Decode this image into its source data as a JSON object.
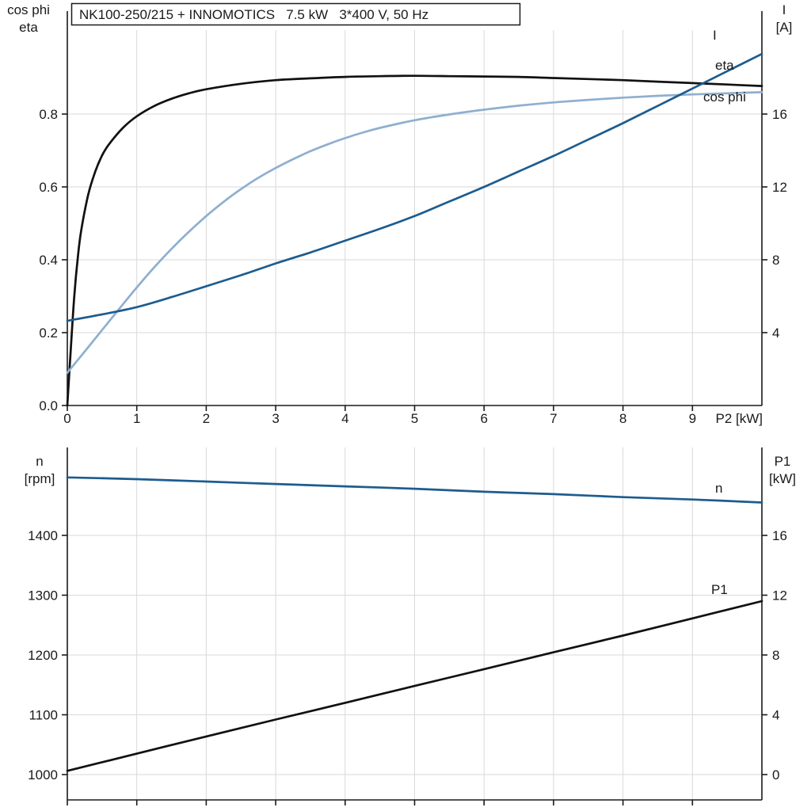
{
  "title": "NK100-250/215 + INNOMOTICS   7.5 kW   3*400 V, 50 Hz",
  "colors": {
    "axis": "#1a1a1a",
    "grid": "#d9d9d9",
    "black_curve": "#111111",
    "dark_blue": "#1d5c8f",
    "light_blue": "#8fafd0",
    "background": "#ffffff"
  },
  "chart_data": [
    {
      "type": "line",
      "title": "NK100-250/215 + INNOMOTICS   7.5 kW   3*400 V, 50 Hz",
      "x_axis": {
        "label": "P2 [kW]",
        "range": [
          0,
          10
        ],
        "ticks": [
          0,
          1,
          2,
          3,
          4,
          5,
          6,
          7,
          8,
          9
        ],
        "tick_labels": [
          "0",
          "1",
          "2",
          "3",
          "4",
          "5",
          "6",
          "7",
          "8",
          "9"
        ]
      },
      "y_axis_left": {
        "title_lines": [
          "cos phi",
          "eta"
        ],
        "range": [
          0,
          1.0
        ],
        "ticks": [
          0,
          0.2,
          0.4,
          0.6,
          0.8
        ],
        "tick_labels": [
          "0.0",
          "0.2",
          "0.4",
          "0.6",
          "0.8"
        ]
      },
      "y_axis_right": {
        "title_lines": [
          "I",
          "[A]"
        ],
        "range": [
          0,
          20
        ],
        "ticks": [
          4,
          8,
          12,
          16
        ],
        "tick_labels": [
          "4",
          "8",
          "12",
          "16"
        ]
      },
      "grid": true,
      "legend_position": "curve-end-labels",
      "series": [
        {
          "name": "eta",
          "label": "eta",
          "axis": "left",
          "color": "#111111",
          "points": [
            [
              0,
              0
            ],
            [
              0.05,
              0.155
            ],
            [
              0.1,
              0.3
            ],
            [
              0.15,
              0.405
            ],
            [
              0.2,
              0.48
            ],
            [
              0.3,
              0.578
            ],
            [
              0.4,
              0.641
            ],
            [
              0.5,
              0.686
            ],
            [
              0.6,
              0.717
            ],
            [
              0.8,
              0.762
            ],
            [
              1,
              0.794
            ],
            [
              1.25,
              0.822
            ],
            [
              1.5,
              0.842
            ],
            [
              1.75,
              0.857
            ],
            [
              2,
              0.868
            ],
            [
              2.5,
              0.883
            ],
            [
              3,
              0.893
            ],
            [
              3.5,
              0.898
            ],
            [
              4,
              0.902
            ],
            [
              4.5,
              0.904
            ],
            [
              5,
              0.905
            ],
            [
              5.5,
              0.904
            ],
            [
              6,
              0.903
            ],
            [
              6.5,
              0.902
            ],
            [
              7,
              0.899
            ],
            [
              7.5,
              0.896
            ],
            [
              8,
              0.893
            ],
            [
              8.5,
              0.889
            ],
            [
              9,
              0.885
            ],
            [
              9.5,
              0.881
            ],
            [
              10,
              0.877
            ]
          ]
        },
        {
          "name": "cos phi",
          "label": "cos phi",
          "axis": "left",
          "color": "#8fafd0",
          "points": [
            [
              0,
              0.09
            ],
            [
              0.25,
              0.148
            ],
            [
              0.5,
              0.207
            ],
            [
              0.75,
              0.266
            ],
            [
              1,
              0.324
            ],
            [
              1.25,
              0.379
            ],
            [
              1.5,
              0.43
            ],
            [
              1.75,
              0.477
            ],
            [
              2,
              0.52
            ],
            [
              2.25,
              0.559
            ],
            [
              2.5,
              0.594
            ],
            [
              2.75,
              0.625
            ],
            [
              3,
              0.652
            ],
            [
              3.25,
              0.676
            ],
            [
              3.5,
              0.698
            ],
            [
              3.75,
              0.717
            ],
            [
              4,
              0.734
            ],
            [
              4.25,
              0.749
            ],
            [
              4.5,
              0.762
            ],
            [
              5,
              0.783
            ],
            [
              5.5,
              0.799
            ],
            [
              6,
              0.812
            ],
            [
              6.5,
              0.823
            ],
            [
              7,
              0.832
            ],
            [
              7.5,
              0.839
            ],
            [
              8,
              0.845
            ],
            [
              8.5,
              0.85
            ],
            [
              9,
              0.854
            ],
            [
              9.5,
              0.857
            ],
            [
              10,
              0.86
            ]
          ]
        },
        {
          "name": "I",
          "label": "I",
          "axis": "right",
          "color": "#1d5c8f",
          "points": [
            [
              0,
              4.65
            ],
            [
              0.5,
              5.0
            ],
            [
              1,
              5.4
            ],
            [
              1.5,
              5.95
            ],
            [
              2,
              6.55
            ],
            [
              2.5,
              7.15
            ],
            [
              3,
              7.8
            ],
            [
              3.5,
              8.4
            ],
            [
              4,
              9.05
            ],
            [
              4.5,
              9.7
            ],
            [
              5,
              10.4
            ],
            [
              5.5,
              11.2
            ],
            [
              6,
              12.0
            ],
            [
              6.5,
              12.85
            ],
            [
              7,
              13.7
            ],
            [
              7.5,
              14.6
            ],
            [
              8,
              15.5
            ],
            [
              8.5,
              16.45
            ],
            [
              9,
              17.4
            ],
            [
              9.5,
              18.35
            ],
            [
              10,
              19.3
            ]
          ]
        }
      ]
    },
    {
      "type": "line",
      "title": "",
      "x_axis": {
        "label": "",
        "range": [
          0,
          10
        ],
        "ticks": [
          0,
          1,
          2,
          3,
          4,
          5,
          6,
          7,
          8,
          9
        ],
        "tick_labels": []
      },
      "y_axis_left": {
        "title_lines": [
          "n",
          "[rpm]"
        ],
        "range": [
          960,
          1560
        ],
        "ticks": [
          1000,
          1100,
          1200,
          1300,
          1400
        ],
        "tick_labels": [
          "1000",
          "1100",
          "1200",
          "1300",
          "1400"
        ]
      },
      "y_axis_right": {
        "title_lines": [
          "P1",
          "[kW]"
        ],
        "range": [
          0,
          22
        ],
        "ticks": [
          0,
          4,
          8,
          12,
          16
        ],
        "tick_labels": [
          "0",
          "4",
          "8",
          "12",
          "16"
        ]
      },
      "grid": true,
      "legend_position": "curve-end-labels",
      "series": [
        {
          "name": "n",
          "label": "n",
          "axis": "left",
          "color": "#1d5c8f",
          "points": [
            [
              0,
              1497
            ],
            [
              1,
              1494
            ],
            [
              2,
              1490
            ],
            [
              3,
              1486
            ],
            [
              4,
              1482
            ],
            [
              5,
              1478
            ],
            [
              6,
              1473
            ],
            [
              7,
              1469
            ],
            [
              8,
              1464
            ],
            [
              9,
              1460
            ],
            [
              10,
              1455
            ]
          ]
        },
        {
          "name": "P1",
          "label": "P1",
          "axis": "right",
          "color": "#111111",
          "points": [
            [
              0,
              0.25
            ],
            [
              1,
              1.4
            ],
            [
              2,
              2.55
            ],
            [
              3,
              3.68
            ],
            [
              4,
              4.8
            ],
            [
              5,
              5.93
            ],
            [
              6,
              7.05
            ],
            [
              7,
              8.18
            ],
            [
              8,
              9.3
            ],
            [
              9,
              10.45
            ],
            [
              10,
              11.6
            ]
          ]
        }
      ]
    }
  ]
}
